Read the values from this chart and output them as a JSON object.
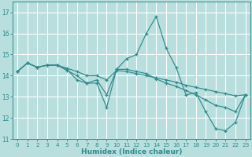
{
  "title": "",
  "xlabel": "Humidex (Indice chaleur)",
  "ylabel": "",
  "bg_color": "#b8dede",
  "line_color": "#2e8b8b",
  "grid_color": "#ffffff",
  "xlim": [
    -0.5,
    23.5
  ],
  "ylim": [
    11,
    17.5
  ],
  "yticks": [
    11,
    12,
    13,
    14,
    15,
    16,
    17
  ],
  "xticks": [
    0,
    1,
    2,
    3,
    4,
    5,
    6,
    7,
    8,
    9,
    10,
    11,
    12,
    13,
    14,
    15,
    16,
    17,
    18,
    19,
    20,
    21,
    22,
    23
  ],
  "series": [
    [
      14.2,
      14.6,
      14.4,
      14.5,
      14.5,
      14.3,
      13.8,
      13.65,
      13.65,
      12.5,
      14.3,
      14.8,
      15.0,
      16.0,
      16.8,
      15.3,
      14.4,
      13.1,
      13.2,
      12.3,
      11.5,
      11.4,
      11.8,
      13.1
    ],
    [
      14.2,
      14.6,
      14.4,
      14.5,
      14.5,
      14.25,
      14.0,
      13.65,
      13.8,
      13.1,
      14.3,
      14.3,
      14.2,
      14.1,
      13.85,
      13.65,
      13.5,
      13.3,
      13.1,
      12.85,
      12.6,
      12.5,
      12.3,
      13.1
    ],
    [
      14.2,
      14.6,
      14.4,
      14.5,
      14.5,
      14.35,
      14.2,
      14.0,
      14.0,
      13.8,
      14.25,
      14.2,
      14.1,
      14.0,
      13.9,
      13.8,
      13.7,
      13.55,
      13.45,
      13.35,
      13.25,
      13.15,
      13.05,
      13.1
    ]
  ]
}
